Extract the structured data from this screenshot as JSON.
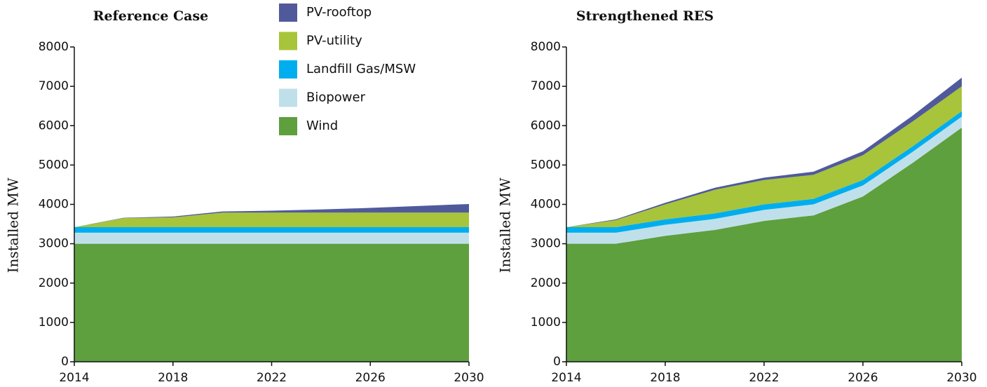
{
  "chart_data": [
    {
      "type": "stacked-area",
      "title": "Reference Case",
      "y_label": "Installed MW",
      "x": [
        2014,
        2016,
        2018,
        2020,
        2022,
        2024,
        2026,
        2028,
        2030
      ],
      "xlim": [
        2014,
        2030
      ],
      "xticks": [
        2014,
        2018,
        2022,
        2026,
        2030
      ],
      "ylim": [
        0,
        8000
      ],
      "yticks": [
        0,
        1000,
        2000,
        3000,
        4000,
        5000,
        6000,
        7000,
        8000
      ],
      "series": [
        {
          "name": "Wind",
          "color": "#5e9f3e",
          "values": [
            3000,
            3000,
            3000,
            3000,
            3000,
            3000,
            3000,
            3000,
            3000
          ]
        },
        {
          "name": "Biopower",
          "color": "#bfe0ea",
          "values": [
            280,
            280,
            280,
            280,
            280,
            280,
            280,
            280,
            280
          ]
        },
        {
          "name": "Landfill Gas/MSW",
          "color": "#00aeef",
          "values": [
            140,
            140,
            140,
            140,
            140,
            140,
            140,
            140,
            140
          ]
        },
        {
          "name": "PV-utility",
          "color": "#a8c43a",
          "values": [
            0,
            230,
            250,
            370,
            370,
            370,
            370,
            370,
            370
          ]
        },
        {
          "name": "PV-rooftop",
          "color": "#505a9b",
          "values": [
            0,
            10,
            20,
            30,
            50,
            80,
            120,
            170,
            220
          ]
        }
      ]
    },
    {
      "type": "stacked-area",
      "title": "Strengthened RES",
      "y_label": "Installed MW",
      "x": [
        2014,
        2016,
        2018,
        2020,
        2022,
        2024,
        2026,
        2028,
        2030
      ],
      "xlim": [
        2014,
        2030
      ],
      "xticks": [
        2014,
        2018,
        2022,
        2026,
        2030
      ],
      "ylim": [
        0,
        8000
      ],
      "yticks": [
        0,
        1000,
        2000,
        3000,
        4000,
        5000,
        6000,
        7000,
        8000
      ],
      "series": [
        {
          "values": [
            3000,
            3000,
            3200,
            3350,
            3580,
            3720,
            4200,
            5050,
            5950
          ]
        },
        {
          "values": [
            280,
            280,
            280,
            280,
            280,
            280,
            280,
            280,
            280
          ]
        },
        {
          "values": [
            140,
            140,
            140,
            140,
            140,
            140,
            140,
            140,
            140
          ]
        },
        {
          "values": [
            0,
            180,
            380,
            600,
            620,
            610,
            630,
            630,
            630
          ]
        },
        {
          "values": [
            0,
            20,
            40,
            50,
            60,
            80,
            100,
            150,
            220
          ]
        }
      ]
    }
  ]
}
